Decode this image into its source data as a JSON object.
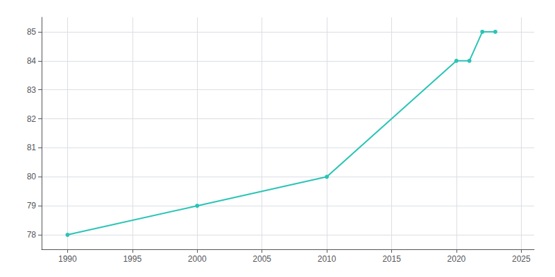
{
  "chart_data": {
    "type": "line",
    "x": [
      1990,
      2000,
      2010,
      2020,
      2021,
      2022,
      2023
    ],
    "values": [
      78,
      79,
      80,
      84,
      84,
      85,
      85
    ],
    "color": "#2ac4b5",
    "marker": "circle",
    "xlim": [
      1988,
      2026
    ],
    "xticks": [
      1990,
      1995,
      2000,
      2005,
      2010,
      2015,
      2020,
      2025
    ],
    "ylim": [
      77.5,
      85.5
    ],
    "yticks": [
      78,
      79,
      80,
      81,
      82,
      83,
      84,
      85
    ],
    "grid": true
  }
}
